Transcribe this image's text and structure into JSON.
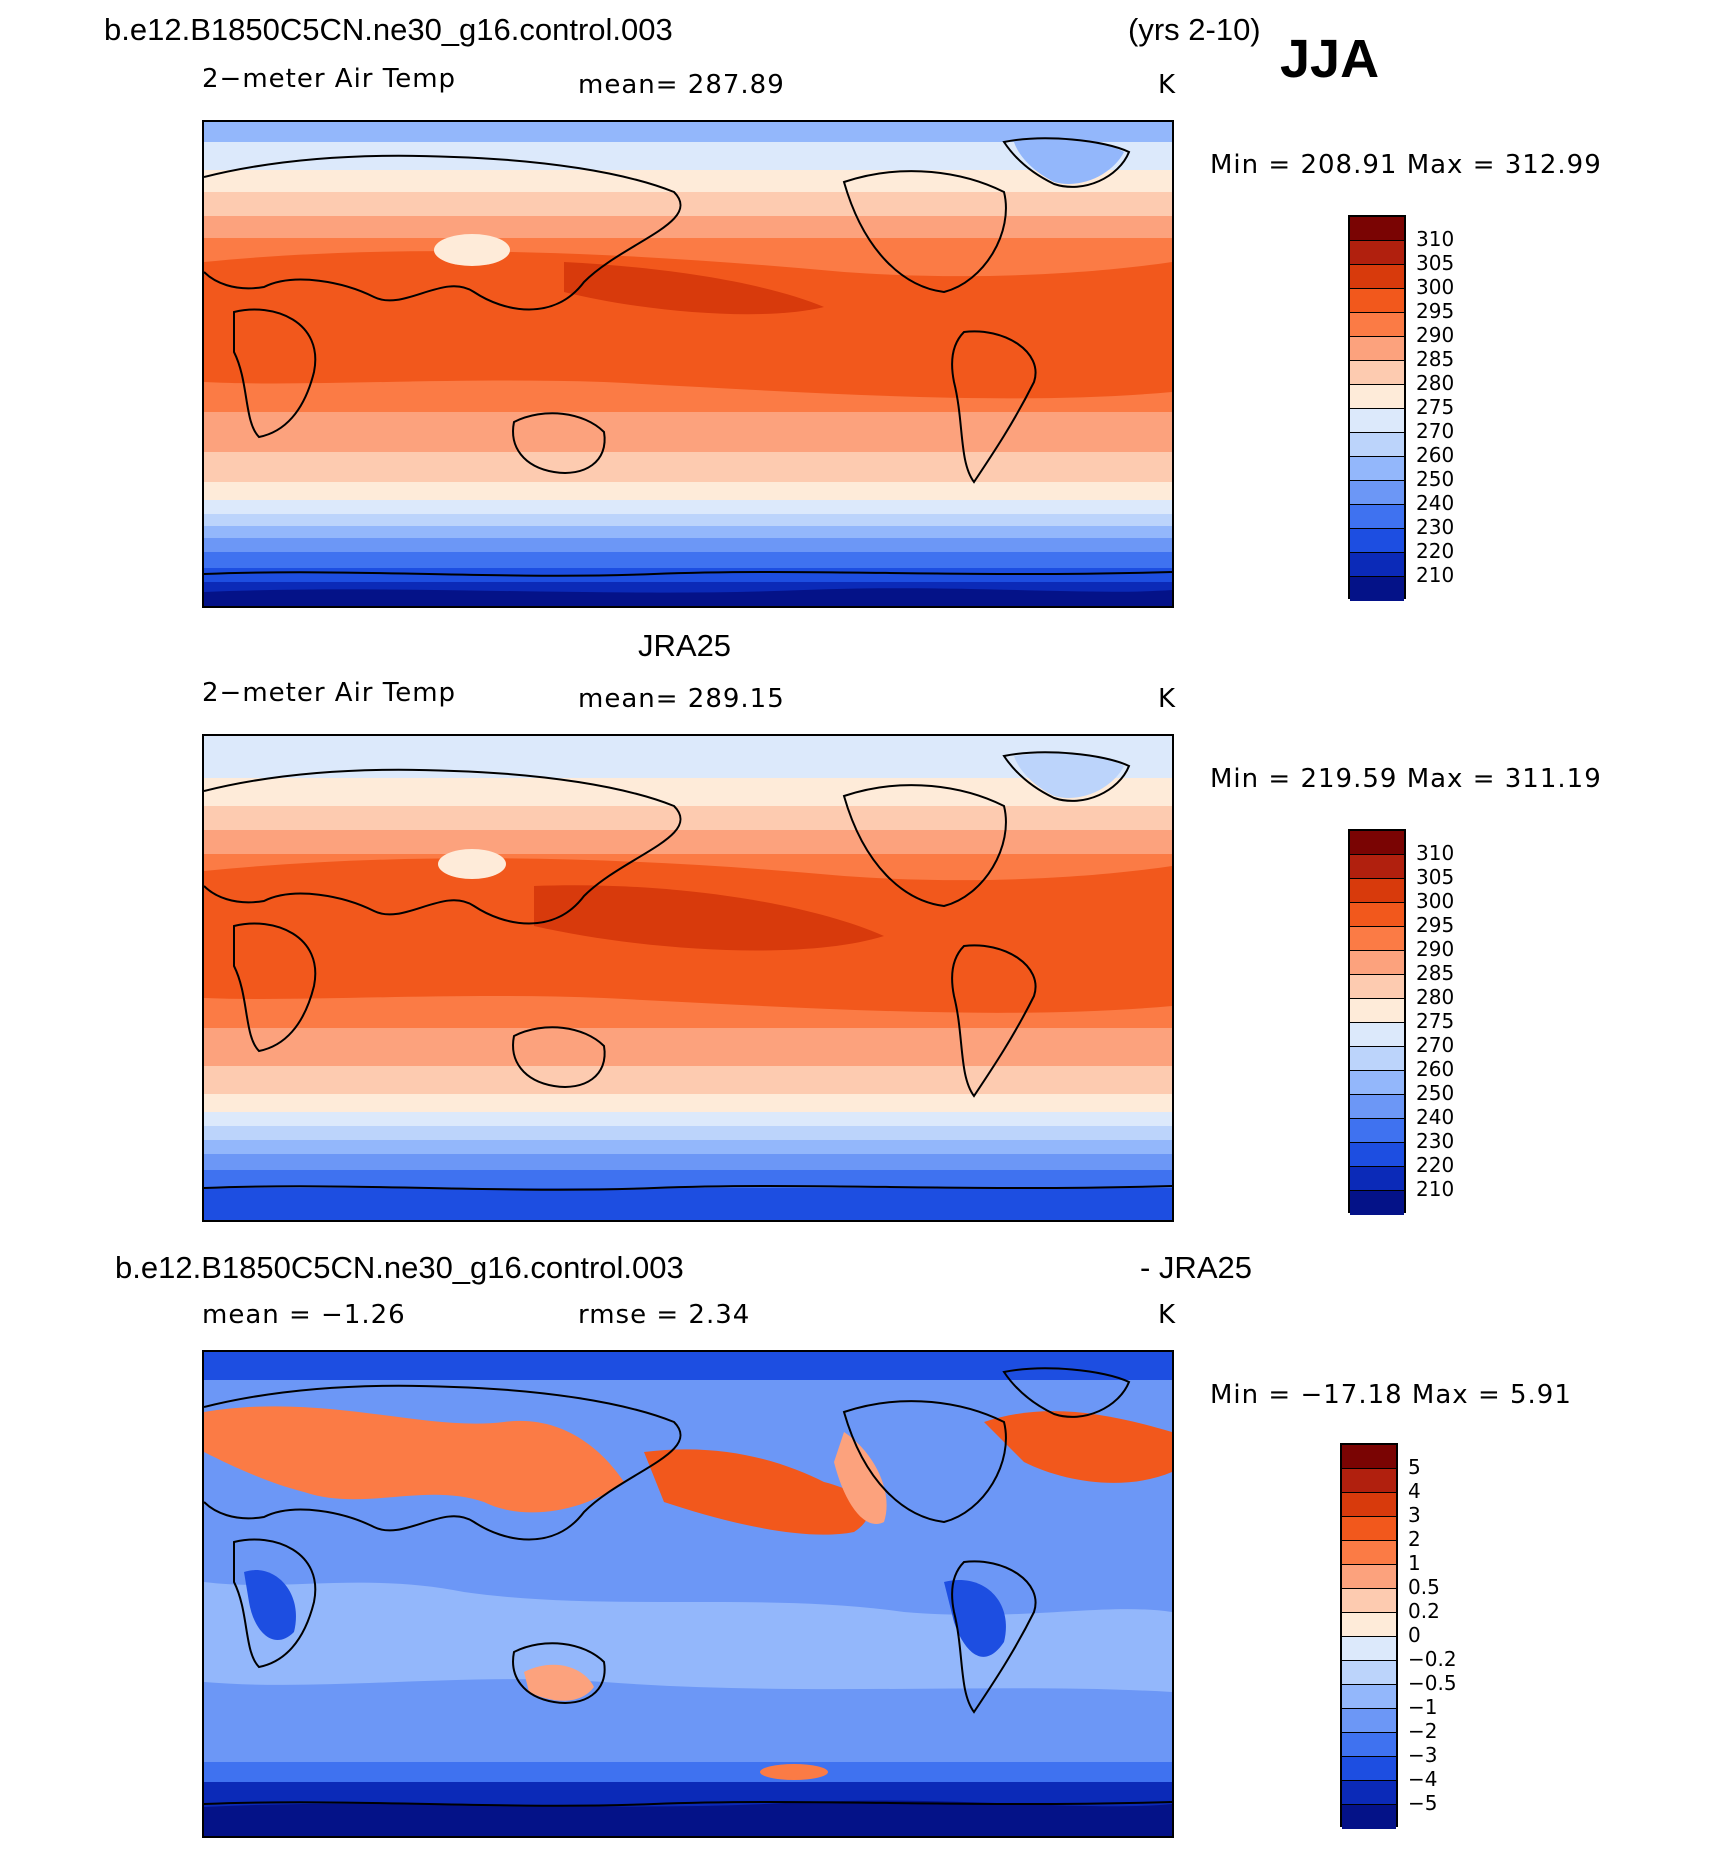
{
  "header": {
    "case_name": "b.e12.B1850C5CN.ne30_g16.control.003",
    "years": "(yrs 2-10)",
    "season": "JJA"
  },
  "panel_top": {
    "variable": "2−meter Air Temp",
    "mean_text": "mean= 287.89",
    "units": "K",
    "minmax_text": "Min = 208.91 Max = 312.99",
    "levels": [
      "310",
      "305",
      "300",
      "295",
      "290",
      "285",
      "280",
      "275",
      "270",
      "260",
      "250",
      "240",
      "230",
      "220",
      "210"
    ]
  },
  "panel_mid": {
    "dataset": "JRA25",
    "variable": "2−meter Air Temp",
    "mean_text": "mean= 289.15",
    "units": "K",
    "minmax_text": "Min = 219.59 Max = 311.19",
    "levels": [
      "310",
      "305",
      "300",
      "295",
      "290",
      "285",
      "280",
      "275",
      "270",
      "260",
      "250",
      "240",
      "230",
      "220",
      "210"
    ]
  },
  "panel_diff": {
    "case_name": "b.e12.B1850C5CN.ne30_g16.control.003",
    "minus_label": "- JRA25",
    "mean_text": "mean =  −1.26",
    "rmse_text": "rmse =   2.34",
    "units": "K",
    "minmax_text": "Min = −17.18 Max =   5.91",
    "levels": [
      "5",
      "4",
      "3",
      "2",
      "1",
      "0.5",
      "0.2",
      "0",
      "−0.2",
      "−0.5",
      "−1",
      "−2",
      "−3",
      "−4",
      "−5"
    ]
  },
  "colors": {
    "temp_scale": [
      "#7a0403",
      "#b1200e",
      "#d83a0c",
      "#f2581c",
      "#fb7b45",
      "#fca27d",
      "#fdcbb0",
      "#feebd9",
      "#dce9fb",
      "#bcd4fb",
      "#93b7fb",
      "#6c97f6",
      "#3f72f0",
      "#1d4ee1",
      "#0b2ab8",
      "#041288"
    ],
    "diff_scale": [
      "#7a0403",
      "#b1200e",
      "#d83a0c",
      "#f2581c",
      "#fb7b45",
      "#fca27d",
      "#fdcbb0",
      "#feebd9",
      "#dce9fb",
      "#bcd4fb",
      "#93b7fb",
      "#6c97f6",
      "#3f72f0",
      "#1d4ee1",
      "#0b2ab8",
      "#041288"
    ]
  }
}
